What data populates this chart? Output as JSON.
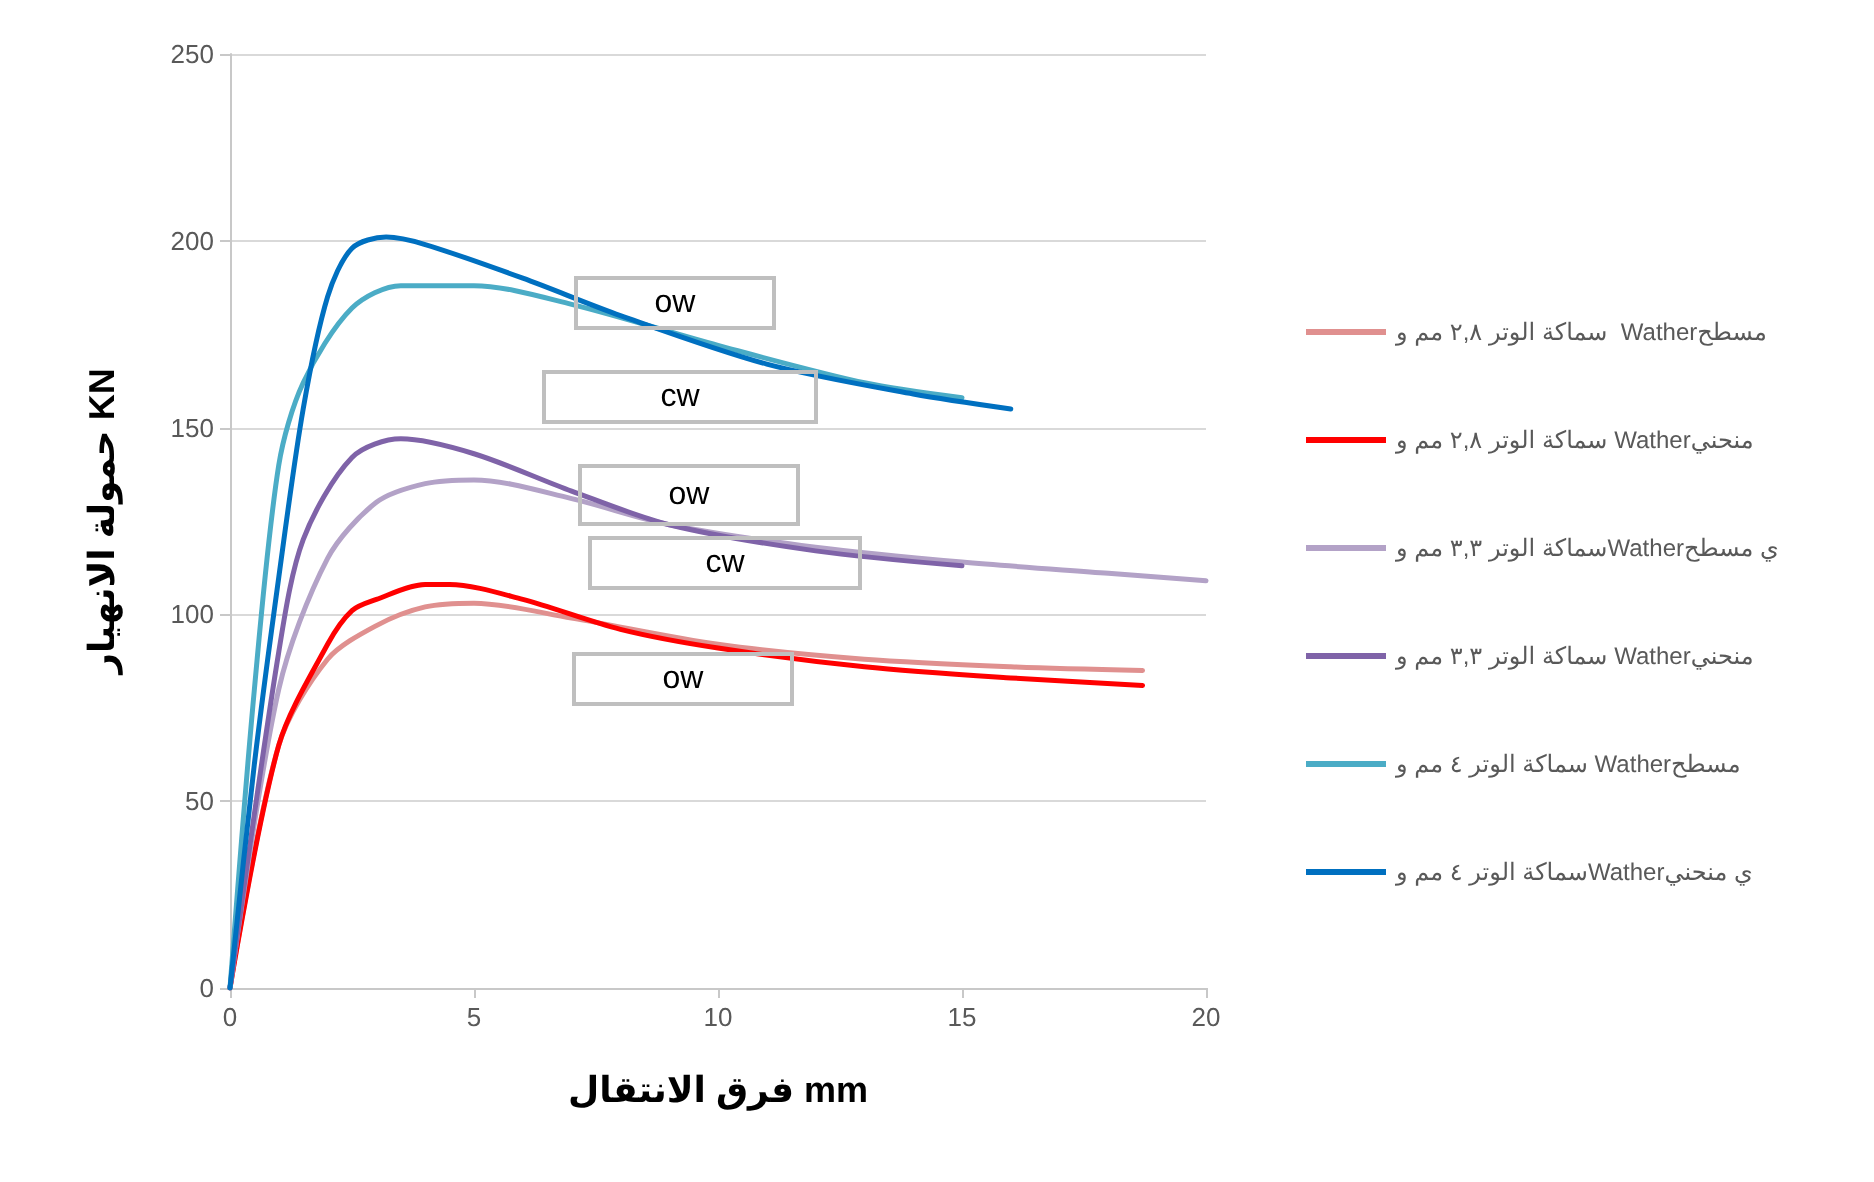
{
  "chart_data": {
    "type": "line",
    "xlabel": "فرق الانتقال mm",
    "ylabel": "حمولة الانهيار KN",
    "xlim": [
      0,
      20
    ],
    "xticks": [
      0,
      5,
      10,
      15,
      20
    ],
    "ylim": [
      0,
      250
    ],
    "yticks": [
      0,
      50,
      100,
      150,
      200,
      250
    ],
    "grid": "y",
    "legend": "right",
    "marker": "none",
    "line_style": "solid",
    "series": [
      {
        "name": "سماكة الوتر ٢,٨ مم و  Watherمسطح",
        "color": "#e0908f",
        "x": [
          0,
          1,
          2,
          3,
          4,
          5,
          7,
          10,
          13,
          16,
          18.7
        ],
        "values": [
          0,
          65,
          88,
          97,
          102,
          103,
          99,
          92,
          88,
          86,
          85
        ]
      },
      {
        "name": "سماكة الوتر ٢,٨ مم و Watherمنحني",
        "color": "#ff0000",
        "x": [
          0,
          1,
          2,
          2.5,
          3,
          4,
          4.5,
          6,
          8,
          10,
          13,
          16,
          18.7
        ],
        "values": [
          0,
          65,
          92,
          101,
          104,
          108,
          108,
          104,
          96,
          91,
          86,
          83,
          81
        ]
      },
      {
        "name": "سماكة الوتر ٣,٣ مم وWatherي مسطح",
        "color": "#b3a2c7",
        "x": [
          0,
          1,
          2,
          3,
          4,
          5,
          7,
          9,
          12,
          15,
          18,
          20
        ],
        "values": [
          0,
          80,
          115,
          130,
          135,
          136,
          131,
          124,
          118,
          114,
          111,
          109
        ]
      },
      {
        "name": "سماكة الوتر ٣,٣ مم و Watherمنحني",
        "color": "#7f63a8",
        "x": [
          0,
          1,
          1.5,
          2.5,
          3.5,
          5,
          7,
          9,
          12,
          15
        ],
        "values": [
          0,
          90,
          120,
          142,
          147,
          143,
          133,
          124,
          117,
          113
        ]
      },
      {
        "name": "سماكة الوتر ٤ مم و Watherمسطح",
        "color": "#4bacc6",
        "x": [
          0,
          0.5,
          1,
          1.5,
          2.5,
          3.5,
          5,
          7,
          10,
          13,
          15
        ],
        "values": [
          0,
          80,
          140,
          162,
          182,
          188,
          188,
          183,
          172,
          162,
          158
        ]
      },
      {
        "name": "سماكة الوتر ٤ مم وWatherي منحني",
        "color": "#0070c0",
        "x": [
          0,
          0.5,
          1,
          1.5,
          2,
          2.5,
          3.2,
          4,
          6,
          8,
          11,
          14,
          16
        ],
        "values": [
          0,
          60,
          110,
          155,
          185,
          198,
          201,
          199,
          190,
          180,
          167,
          159,
          155
        ]
      }
    ],
    "annotations": [
      "ow",
      "cw",
      "ow",
      "cw",
      "ow"
    ]
  }
}
